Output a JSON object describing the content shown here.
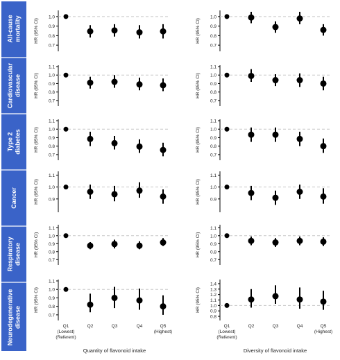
{
  "colors": {
    "band": "#3a63c8",
    "band_text": "#ffffff",
    "marker": "#000000",
    "ref_line": "#c8c8c8",
    "axis": "#000000",
    "text": "#222222"
  },
  "rows": [
    "All-cause mortality",
    "Cardiovascular disease",
    "Type 2 diabetes",
    "Cancer",
    "Respiratory disease",
    "Neurodegenerative disease"
  ],
  "quintiles": [
    "Q1\n(Lowest)\n(Referent)",
    "Q2",
    "Q3",
    "Q4",
    "Q5\n(Highest)"
  ],
  "column_titles": [
    "Quantity of flavonoid intake",
    "Diversity of flavonoid intake"
  ],
  "ylabel": "HR (95% CI)",
  "chart_data": [
    {
      "type": "scatter",
      "row": "All-cause mortality",
      "column": "Quantity of flavonoid intake",
      "ylabel": "HR (95% CI)",
      "ylim": [
        0.65,
        1.05
      ],
      "yticks": [
        0.7,
        0.8,
        0.9,
        1.0
      ],
      "y": [
        1.0,
        0.845,
        0.855,
        0.835,
        0.845
      ],
      "lower": [
        1.0,
        0.78,
        0.79,
        0.77,
        0.77
      ],
      "upper": [
        1.0,
        0.91,
        0.92,
        0.91,
        0.92
      ]
    },
    {
      "type": "scatter",
      "row": "All-cause mortality",
      "column": "Diversity of flavonoid intake",
      "ylabel": "HR (95% CI)",
      "ylim": [
        0.65,
        1.05
      ],
      "yticks": [
        0.7,
        0.8,
        0.9,
        1.0
      ],
      "y": [
        1.0,
        0.99,
        0.89,
        0.98,
        0.86
      ],
      "lower": [
        1.0,
        0.93,
        0.83,
        0.92,
        0.8
      ],
      "upper": [
        1.0,
        1.05,
        0.95,
        1.05,
        0.92
      ]
    },
    {
      "type": "scatter",
      "row": "Cardiovascular disease",
      "column": "Quantity of flavonoid intake",
      "ylabel": "HR (95% CI)",
      "ylim": [
        0.65,
        1.1
      ],
      "yticks": [
        0.7,
        0.8,
        0.9,
        1.0,
        1.1
      ],
      "y": [
        1.0,
        0.91,
        0.92,
        0.89,
        0.88
      ],
      "lower": [
        1.0,
        0.84,
        0.85,
        0.82,
        0.81
      ],
      "upper": [
        1.0,
        0.98,
        1.0,
        0.97,
        0.96
      ]
    },
    {
      "type": "scatter",
      "row": "Cardiovascular disease",
      "column": "Diversity of flavonoid intake",
      "ylabel": "HR (95% CI)",
      "ylim": [
        0.65,
        1.1
      ],
      "yticks": [
        0.7,
        0.8,
        0.9,
        1.0,
        1.1
      ],
      "y": [
        1.0,
        0.99,
        0.94,
        0.94,
        0.9
      ],
      "lower": [
        1.0,
        0.92,
        0.87,
        0.86,
        0.82
      ],
      "upper": [
        1.0,
        1.07,
        1.01,
        1.02,
        0.98
      ]
    },
    {
      "type": "scatter",
      "row": "Type 2 diabetes",
      "column": "Quantity of flavonoid intake",
      "ylabel": "HR (95% CI)",
      "ylim": [
        0.65,
        1.1
      ],
      "yticks": [
        0.7,
        0.8,
        0.9,
        1.0,
        1.1
      ],
      "y": [
        1.0,
        0.885,
        0.835,
        0.795,
        0.755
      ],
      "lower": [
        1.0,
        0.8,
        0.76,
        0.72,
        0.68
      ],
      "upper": [
        1.0,
        0.97,
        0.92,
        0.88,
        0.84
      ]
    },
    {
      "type": "scatter",
      "row": "Type 2 diabetes",
      "column": "Diversity of flavonoid intake",
      "ylabel": "HR (95% CI)",
      "ylim": [
        0.65,
        1.1
      ],
      "yticks": [
        0.7,
        0.8,
        0.9,
        1.0,
        1.1
      ],
      "y": [
        1.0,
        0.935,
        0.935,
        0.885,
        0.8
      ],
      "lower": [
        1.0,
        0.85,
        0.85,
        0.8,
        0.72
      ],
      "upper": [
        1.0,
        1.02,
        1.02,
        0.97,
        0.89
      ]
    },
    {
      "type": "scatter",
      "row": "Cancer",
      "column": "Quantity of flavonoid intake",
      "ylabel": "HR (95% CI)",
      "ylim": [
        0.8,
        1.12
      ],
      "yticks": [
        0.9,
        1.0,
        1.1
      ],
      "y": [
        1.0,
        0.96,
        0.94,
        0.97,
        0.92
      ],
      "lower": [
        1.0,
        0.9,
        0.88,
        0.91,
        0.86
      ],
      "upper": [
        1.0,
        1.02,
        1.01,
        1.04,
        0.98
      ]
    },
    {
      "type": "scatter",
      "row": "Cancer",
      "column": "Diversity of flavonoid intake",
      "ylabel": "HR (95% CI)",
      "ylim": [
        0.8,
        1.12
      ],
      "yticks": [
        0.9,
        1.0,
        1.1
      ],
      "y": [
        1.0,
        0.95,
        0.91,
        0.96,
        0.92
      ],
      "lower": [
        1.0,
        0.89,
        0.85,
        0.9,
        0.86
      ],
      "upper": [
        1.0,
        1.01,
        0.97,
        1.02,
        0.99
      ]
    },
    {
      "type": "scatter",
      "row": "Respiratory disease",
      "column": "Quantity of flavonoid intake",
      "ylabel": "HR (95% CI)",
      "ylim": [
        0.65,
        1.12
      ],
      "yticks": [
        0.7,
        0.8,
        0.9,
        1.0,
        1.1
      ],
      "y": [
        1.0,
        0.875,
        0.895,
        0.875,
        0.915
      ],
      "lower": [
        1.0,
        0.83,
        0.84,
        0.83,
        0.87
      ],
      "upper": [
        1.0,
        0.92,
        0.95,
        0.93,
        0.97
      ]
    },
    {
      "type": "scatter",
      "row": "Respiratory disease",
      "column": "Diversity of flavonoid intake",
      "ylabel": "HR (95% CI)",
      "ylim": [
        0.65,
        1.12
      ],
      "yticks": [
        0.7,
        0.8,
        0.9,
        1.0,
        1.1
      ],
      "y": [
        1.0,
        0.935,
        0.915,
        0.935,
        0.925
      ],
      "lower": [
        1.0,
        0.88,
        0.86,
        0.88,
        0.87
      ],
      "upper": [
        1.0,
        0.99,
        0.97,
        0.99,
        0.98
      ]
    },
    {
      "type": "scatter",
      "row": "Neurodegenerative disease",
      "column": "Quantity of flavonoid intake",
      "ylabel": "HR (95% CI)",
      "ylim": [
        0.65,
        1.1
      ],
      "yticks": [
        0.7,
        0.8,
        0.9,
        1.0,
        1.1
      ],
      "y": [
        1.0,
        0.82,
        0.9,
        0.87,
        0.8
      ],
      "lower": [
        1.0,
        0.73,
        0.78,
        0.76,
        0.7
      ],
      "upper": [
        1.0,
        0.95,
        1.03,
        1.01,
        0.93
      ]
    },
    {
      "type": "scatter",
      "row": "Neurodegenerative disease",
      "column": "Diversity of flavonoid intake",
      "ylabel": "HR (95% CI)",
      "ylim": [
        0.75,
        1.45
      ],
      "yticks": [
        0.8,
        0.9,
        1.0,
        1.1,
        1.2,
        1.3,
        1.4
      ],
      "y": [
        1.0,
        1.11,
        1.17,
        1.11,
        1.07
      ],
      "lower": [
        1.0,
        0.96,
        1.03,
        0.94,
        0.92
      ],
      "upper": [
        1.0,
        1.3,
        1.37,
        1.33,
        1.27
      ]
    }
  ]
}
